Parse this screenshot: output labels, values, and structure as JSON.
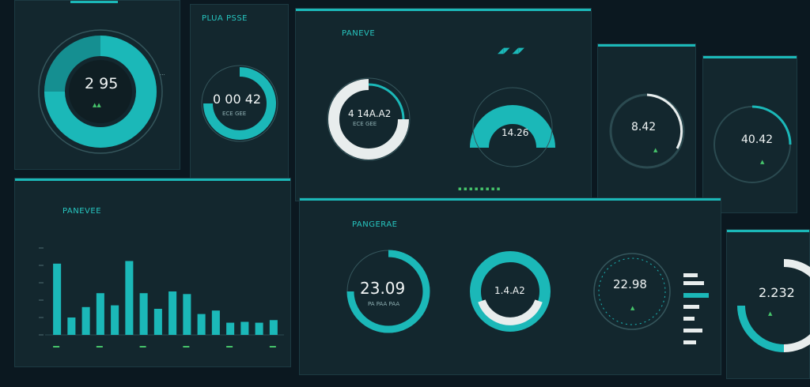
{
  "colors": {
    "background": "#0b1820",
    "panel": "#13272e",
    "accent": "#1bb8b8",
    "text": "#f1f5f5",
    "green": "#46c46b",
    "white_arc": "#e8eded"
  },
  "panels": {
    "p1": {
      "value": "2 95"
    },
    "p2": {
      "title": "PLUA PSSE",
      "value": "0 00 42",
      "subtext": "ECE GEE"
    },
    "p3": {
      "title": "PANEVE",
      "gauge_left_value": "4 14A.A2",
      "gauge_left_sub": "ECE GEE",
      "gauge_right_value": "14.26"
    },
    "p4": {
      "value": "8.42"
    },
    "p5": {
      "value": "40.42"
    },
    "p6": {
      "title": "PANEVEE"
    },
    "p7": {
      "title": "PANGERAE",
      "g1_value": "23.09",
      "g1_sub": "PA PAA PAA",
      "g2_value": "1.4.A2",
      "g3_value": "22.98"
    },
    "p8": {
      "value": "2.232"
    }
  },
  "chart_data": {
    "type": "bar",
    "title": "PANEVEE",
    "values": [
      82,
      20,
      32,
      48,
      34,
      85,
      48,
      30,
      50,
      47,
      24,
      28,
      14,
      15,
      14,
      17
    ]
  }
}
